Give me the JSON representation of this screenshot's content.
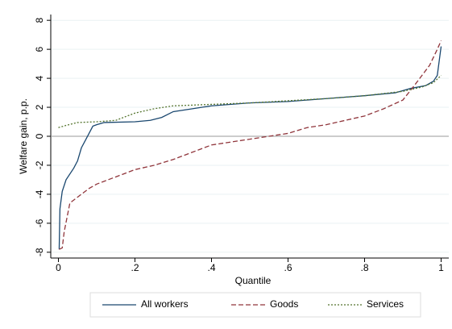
{
  "chart_data": {
    "type": "line",
    "xlabel": "Quantile",
    "ylabel": "Welfare gain, p.p.",
    "xlim": [
      -0.02,
      1.02
    ],
    "ylim": [
      -8.4,
      8.4
    ],
    "xticks": [
      0,
      {
        "value": 0.2,
        "label": ".2"
      },
      {
        "value": 0.4,
        "label": ".4"
      },
      {
        "value": 0.6,
        "label": ".6"
      },
      {
        "value": 0.8,
        "label": ".8"
      },
      1
    ],
    "yticks": [
      -8,
      -6,
      -4,
      -2,
      0,
      2,
      4,
      6,
      8
    ],
    "grid": true,
    "legend": "bottom",
    "series": [
      {
        "name": "All workers",
        "color": "#1a476f",
        "dash": "solid",
        "x": [
          0.002,
          0.004,
          0.01,
          0.02,
          0.04,
          0.05,
          0.06,
          0.07,
          0.08,
          0.09,
          0.1,
          0.12,
          0.2,
          0.24,
          0.27,
          0.3,
          0.35,
          0.4,
          0.5,
          0.6,
          0.7,
          0.8,
          0.88,
          0.92,
          0.96,
          0.98,
          0.99,
          1.0
        ],
        "values": [
          -7.8,
          -5,
          -3.8,
          -3,
          -2.2,
          -1.7,
          -0.8,
          -0.3,
          0.2,
          0.7,
          0.8,
          0.95,
          1.0,
          1.1,
          1.3,
          1.7,
          1.9,
          2.1,
          2.3,
          2.4,
          2.6,
          2.8,
          3.0,
          3.3,
          3.5,
          3.8,
          4.2,
          6.2
        ]
      },
      {
        "name": "Goods",
        "color": "#90353b",
        "dash": "dashed",
        "x": [
          0.002,
          0.01,
          0.015,
          0.03,
          0.05,
          0.08,
          0.1,
          0.15,
          0.2,
          0.25,
          0.3,
          0.35,
          0.4,
          0.45,
          0.5,
          0.55,
          0.6,
          0.65,
          0.7,
          0.75,
          0.8,
          0.85,
          0.9,
          0.93,
          0.95,
          0.97,
          0.99,
          1.0
        ],
        "values": [
          -7.8,
          -7.7,
          -6.6,
          -4.6,
          -4.2,
          -3.6,
          -3.3,
          -2.8,
          -2.3,
          -2.0,
          -1.6,
          -1.1,
          -0.6,
          -0.4,
          -0.2,
          0,
          0.2,
          0.6,
          0.8,
          1.1,
          1.4,
          1.9,
          2.5,
          3.5,
          4.2,
          4.9,
          6.0,
          6.6
        ]
      },
      {
        "name": "Services",
        "color": "#55752f",
        "dash": "dotted",
        "x": [
          0,
          0.02,
          0.05,
          0.1,
          0.15,
          0.2,
          0.25,
          0.3,
          0.4,
          0.5,
          0.6,
          0.7,
          0.8,
          0.9,
          0.95,
          0.98,
          1.0
        ],
        "values": [
          0.6,
          0.75,
          0.95,
          1.0,
          1.1,
          1.6,
          1.9,
          2.1,
          2.2,
          2.3,
          2.45,
          2.6,
          2.8,
          3.1,
          3.4,
          3.7,
          4.2
        ]
      }
    ]
  }
}
